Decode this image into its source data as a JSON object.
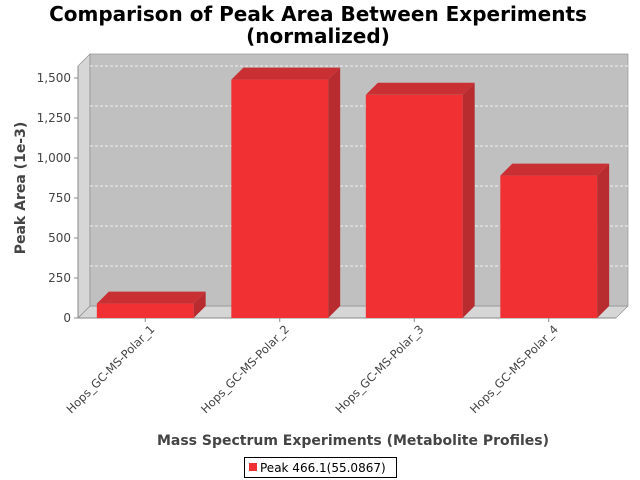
{
  "chart_data": {
    "type": "bar",
    "title_lines": [
      "Comparison of Peak Area Between Experiments",
      "(normalized)"
    ],
    "xlabel": "Mass Spectrum Experiments (Metabolite Profiles)",
    "ylabel": "Peak Area (1e-3)",
    "categories": [
      "Hops_GC-MS-Polar_1",
      "Hops_GC-MS-Polar_2",
      "Hops_GC-MS-Polar_3",
      "Hops_GC-MS-Polar_4"
    ],
    "series": [
      {
        "name": "Peak 466.1(55.0867)",
        "values": [
          90,
          1490,
          1395,
          890
        ]
      }
    ],
    "ylim": [
      0,
      1575
    ],
    "yticks": [
      0,
      250,
      500,
      750,
      1000,
      1250,
      1500
    ],
    "ytick_labels": [
      "0",
      "250",
      "500",
      "750",
      "1,000",
      "1,250",
      "1,500"
    ],
    "grid": true,
    "legend_position": "bottom",
    "colors": {
      "bar_front": "#f03033",
      "bar_side": "#b82c2f",
      "bar_top": "#c93034",
      "plot_bg": "#c0c0c0",
      "plot_wall": "#d6d6d6",
      "grid": "#ffffff"
    }
  }
}
